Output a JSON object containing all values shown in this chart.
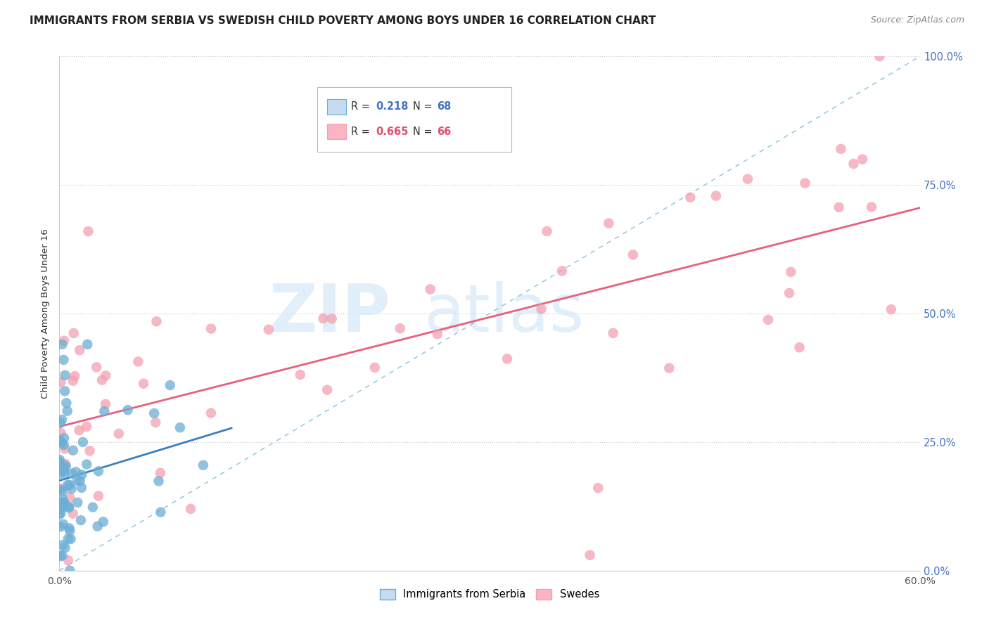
{
  "title": "IMMIGRANTS FROM SERBIA VS SWEDISH CHILD POVERTY AMONG BOYS UNDER 16 CORRELATION CHART",
  "source": "Source: ZipAtlas.com",
  "ylabel": "Child Poverty Among Boys Under 16",
  "legend1_R": "0.218",
  "legend1_N": "68",
  "legend2_R": "0.665",
  "legend2_N": "66",
  "legend1_label": "Immigrants from Serbia",
  "legend2_label": "Swedes",
  "blue_color": "#6baed6",
  "pink_color": "#f4a0b0",
  "blue_fill": "#c6dbef",
  "pink_fill": "#fbb4c4",
  "xlim": [
    0.0,
    0.6
  ],
  "ylim": [
    0.0,
    1.0
  ],
  "background_color": "#ffffff",
  "title_fontsize": 11,
  "axis_label_fontsize": 9,
  "serbia_seed": 12,
  "swedes_seed": 99
}
